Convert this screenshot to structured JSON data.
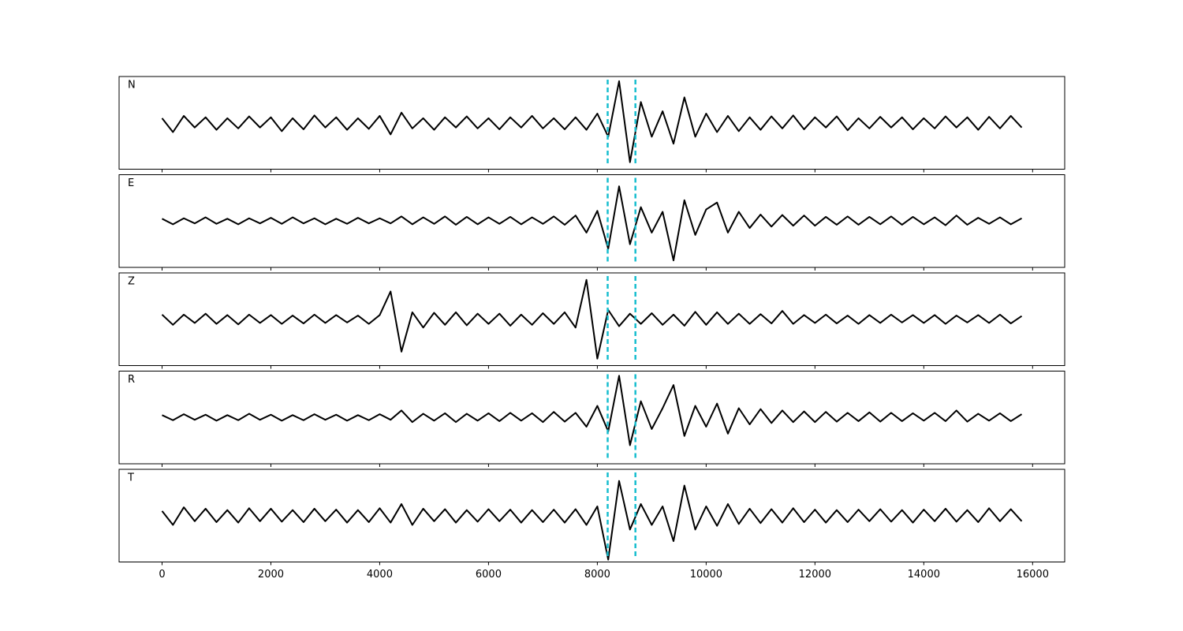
{
  "chart_data": {
    "type": "line",
    "stacked_panels": true,
    "x": [
      0,
      200,
      400,
      600,
      800,
      1000,
      1200,
      1400,
      1600,
      1800,
      2000,
      2200,
      2400,
      2600,
      2800,
      3000,
      3200,
      3400,
      3600,
      3800,
      4000,
      4200,
      4400,
      4600,
      4800,
      5000,
      5200,
      5400,
      5600,
      5800,
      6000,
      6200,
      6400,
      6600,
      6800,
      7000,
      7200,
      7400,
      7600,
      7800,
      8000,
      8200,
      8400,
      8600,
      8800,
      9000,
      9200,
      9400,
      9600,
      9800,
      10000,
      10200,
      10400,
      10600,
      10800,
      11000,
      11200,
      11400,
      11600,
      11800,
      12000,
      12200,
      12400,
      12600,
      12800,
      13000,
      13200,
      13400,
      13600,
      13800,
      14000,
      14200,
      14400,
      14600,
      14800,
      15000,
      15200,
      15400,
      15600,
      15800
    ],
    "xlim": [
      -790,
      16590
    ],
    "xticks": [
      0,
      2000,
      4000,
      6000,
      8000,
      10000,
      12000,
      14000,
      16000
    ],
    "ylim": [
      -1,
      1
    ],
    "vlines": [
      8190,
      8700
    ],
    "vline_color": "#17becf",
    "series": [
      {
        "name": "N",
        "color": "#000000",
        "values": [
          0.1,
          -0.2,
          0.15,
          -0.1,
          0.12,
          -0.15,
          0.1,
          -0.12,
          0.14,
          -0.1,
          0.12,
          -0.18,
          0.1,
          -0.14,
          0.16,
          -0.1,
          0.12,
          -0.15,
          0.1,
          -0.13,
          0.15,
          -0.25,
          0.22,
          -0.12,
          0.1,
          -0.15,
          0.12,
          -0.1,
          0.14,
          -0.12,
          0.1,
          -0.14,
          0.12,
          -0.1,
          0.15,
          -0.12,
          0.1,
          -0.14,
          0.12,
          -0.15,
          0.2,
          -0.3,
          0.9,
          -0.85,
          0.45,
          -0.3,
          0.25,
          -0.45,
          0.55,
          -0.3,
          0.2,
          -0.2,
          0.15,
          -0.18,
          0.12,
          -0.15,
          0.14,
          -0.12,
          0.16,
          -0.14,
          0.12,
          -0.1,
          0.14,
          -0.16,
          0.1,
          -0.12,
          0.13,
          -0.1,
          0.12,
          -0.14,
          0.1,
          -0.12,
          0.14,
          -0.1,
          0.12,
          -0.15,
          0.13,
          -0.12,
          0.15,
          -0.1
        ]
      },
      {
        "name": "E",
        "color": "#000000",
        "values": [
          0.05,
          -0.07,
          0.06,
          -0.05,
          0.08,
          -0.06,
          0.05,
          -0.07,
          0.06,
          -0.05,
          0.07,
          -0.06,
          0.08,
          -0.05,
          0.06,
          -0.07,
          0.05,
          -0.06,
          0.07,
          -0.05,
          0.06,
          -0.05,
          0.1,
          -0.07,
          0.08,
          -0.06,
          0.1,
          -0.08,
          0.09,
          -0.07,
          0.08,
          -0.06,
          0.09,
          -0.07,
          0.08,
          -0.06,
          0.1,
          -0.08,
          0.12,
          -0.25,
          0.22,
          -0.6,
          0.75,
          -0.5,
          0.3,
          -0.25,
          0.2,
          -0.85,
          0.45,
          -0.3,
          0.25,
          0.4,
          -0.25,
          0.2,
          -0.15,
          0.14,
          -0.12,
          0.13,
          -0.1,
          0.12,
          -0.1,
          0.09,
          -0.08,
          0.1,
          -0.08,
          0.09,
          -0.07,
          0.1,
          -0.08,
          0.09,
          -0.07,
          0.08,
          -0.09,
          0.12,
          -0.08,
          0.07,
          -0.06,
          0.08,
          -0.07,
          0.06
        ]
      },
      {
        "name": "Z",
        "color": "#000000",
        "values": [
          0.1,
          -0.12,
          0.1,
          -0.08,
          0.12,
          -0.1,
          0.09,
          -0.11,
          0.1,
          -0.08,
          0.09,
          -0.1,
          0.08,
          -0.09,
          0.1,
          -0.08,
          0.09,
          -0.07,
          0.08,
          -0.1,
          0.09,
          0.6,
          -0.7,
          0.15,
          -0.18,
          0.14,
          -0.12,
          0.15,
          -0.13,
          0.12,
          -0.1,
          0.12,
          -0.14,
          0.1,
          -0.12,
          0.13,
          -0.1,
          0.15,
          -0.18,
          0.85,
          -0.85,
          0.2,
          -0.15,
          0.12,
          -0.1,
          0.13,
          -0.12,
          0.1,
          -0.14,
          0.16,
          -0.12,
          0.15,
          -0.1,
          0.12,
          -0.1,
          0.11,
          -0.09,
          0.18,
          -0.1,
          0.09,
          -0.08,
          0.1,
          -0.09,
          0.08,
          -0.1,
          0.09,
          -0.08,
          0.1,
          -0.07,
          0.09,
          -0.08,
          0.09,
          -0.1,
          0.08,
          -0.07,
          0.09,
          -0.08,
          0.1,
          -0.09,
          0.07
        ]
      },
      {
        "name": "R",
        "color": "#000000",
        "values": [
          0.05,
          -0.06,
          0.07,
          -0.05,
          0.06,
          -0.07,
          0.05,
          -0.06,
          0.08,
          -0.05,
          0.06,
          -0.07,
          0.05,
          -0.06,
          0.07,
          -0.05,
          0.06,
          -0.07,
          0.05,
          -0.06,
          0.07,
          -0.05,
          0.15,
          -0.1,
          0.08,
          -0.07,
          0.09,
          -0.1,
          0.08,
          -0.07,
          0.09,
          -0.08,
          0.1,
          -0.07,
          0.09,
          -0.1,
          0.12,
          -0.09,
          0.1,
          -0.2,
          0.25,
          -0.3,
          0.9,
          -0.6,
          0.35,
          -0.25,
          0.2,
          0.7,
          -0.4,
          0.25,
          -0.2,
          0.3,
          -0.35,
          0.2,
          -0.15,
          0.18,
          -0.12,
          0.15,
          -0.1,
          0.13,
          -0.1,
          0.12,
          -0.09,
          0.1,
          -0.08,
          0.11,
          -0.09,
          0.1,
          -0.08,
          0.09,
          -0.07,
          0.1,
          -0.08,
          0.15,
          -0.09,
          0.08,
          -0.07,
          0.09,
          -0.08,
          0.07
        ]
      },
      {
        "name": "T",
        "color": "#000000",
        "values": [
          0.1,
          -0.2,
          0.18,
          -0.12,
          0.15,
          -0.14,
          0.12,
          -0.15,
          0.16,
          -0.12,
          0.15,
          -0.13,
          0.12,
          -0.14,
          0.15,
          -0.12,
          0.13,
          -0.15,
          0.12,
          -0.14,
          0.16,
          -0.15,
          0.25,
          -0.2,
          0.15,
          -0.12,
          0.14,
          -0.15,
          0.12,
          -0.13,
          0.14,
          -0.12,
          0.13,
          -0.15,
          0.12,
          -0.14,
          0.13,
          -0.15,
          0.14,
          -0.2,
          0.2,
          -0.95,
          0.75,
          -0.3,
          0.25,
          -0.2,
          0.2,
          -0.55,
          0.65,
          -0.3,
          0.2,
          -0.22,
          0.25,
          -0.18,
          0.15,
          -0.16,
          0.14,
          -0.15,
          0.16,
          -0.14,
          0.13,
          -0.15,
          0.12,
          -0.14,
          0.13,
          -0.12,
          0.14,
          -0.13,
          0.12,
          -0.15,
          0.13,
          -0.12,
          0.15,
          -0.13,
          0.12,
          -0.14,
          0.16,
          -0.12,
          0.14,
          -0.12
        ]
      }
    ]
  }
}
